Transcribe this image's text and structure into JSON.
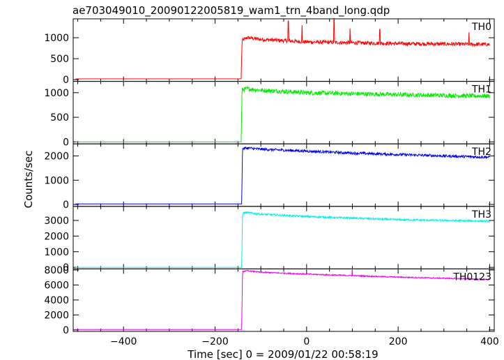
{
  "chart_data": {
    "type": "line",
    "title": "ae703049010_20090122005819_wam1_trn_4band_long.qdp",
    "xlabel": "Time [sec] 0 = 2009/01/22 00:58:19",
    "ylabel": "Counts/sec",
    "xlim": [
      -510,
      410
    ],
    "xticks": [
      -400,
      -200,
      0,
      200,
      400
    ],
    "xtick_labels": [
      "−400",
      "−200",
      "0",
      "200",
      "400"
    ],
    "grid": false,
    "panels": [
      {
        "name": "TH0",
        "color": "#ff0000",
        "ylim": [
          -40,
          1450
        ],
        "yticks": [
          0,
          500,
          1000
        ],
        "pre_level": 20,
        "step_x": -142,
        "post_peak": 1000,
        "post_end": 840,
        "noise": 45,
        "spikes": [
          [
            -40,
            1400
          ],
          [
            -10,
            1300
          ],
          [
            60,
            1460
          ],
          [
            95,
            1220
          ],
          [
            160,
            1200
          ],
          [
            355,
            1130
          ]
        ],
        "series": [
          {
            "name": "TH0",
            "x": [
              -505,
              -143,
              -141,
              -130,
              -100,
              0,
              100,
              200,
              300,
              400
            ],
            "y": [
              20,
              20,
              930,
              1000,
              960,
              900,
              880,
              860,
              850,
              840
            ]
          }
        ]
      },
      {
        "name": "TH1",
        "color": "#00ee00",
        "ylim": [
          -40,
          1230
        ],
        "yticks": [
          0,
          500,
          1000
        ],
        "pre_level": 0,
        "step_x": -142,
        "post_peak": 1080,
        "post_end": 930,
        "noise": 45,
        "spikes": [],
        "series": [
          {
            "name": "TH1",
            "x": [
              -505,
              -143,
              -141,
              -130,
              -100,
              0,
              100,
              200,
              300,
              400
            ],
            "y": [
              0,
              0,
              1060,
              1080,
              1050,
              1000,
              980,
              960,
              945,
              930
            ]
          }
        ]
      },
      {
        "name": "TH2",
        "color": "#0000ee",
        "ylim": [
          -80,
          2500
        ],
        "yticks": [
          0,
          1000,
          2000
        ],
        "pre_level": 20,
        "step_x": -141,
        "post_peak": 2330,
        "post_end": 1950,
        "noise": 55,
        "spikes": [],
        "series": [
          {
            "name": "TH2",
            "x": [
              -505,
              -142,
              -140,
              -130,
              -100,
              0,
              100,
              200,
              300,
              400
            ],
            "y": [
              20,
              20,
              2300,
              2330,
              2280,
              2200,
              2120,
              2060,
              2000,
              1950
            ]
          }
        ]
      },
      {
        "name": "TH3",
        "color": "#00eeee",
        "ylim": [
          -100,
          3900
        ],
        "yticks": [
          0,
          1000,
          2000,
          3000
        ],
        "pre_level": 0,
        "step_x": -141,
        "post_peak": 3500,
        "post_end": 2950,
        "noise": 60,
        "spikes": [],
        "series": [
          {
            "name": "TH3",
            "x": [
              -505,
              -142,
              -140,
              -130,
              -100,
              0,
              100,
              200,
              300,
              400
            ],
            "y": [
              0,
              0,
              3450,
              3500,
              3400,
              3250,
              3150,
              3050,
              3000,
              2950
            ]
          }
        ]
      },
      {
        "name": "TH0123",
        "color": "#ee00ee",
        "ylim": [
          -200,
          8150
        ],
        "yticks": [
          0,
          2000,
          4000,
          6000,
          8000
        ],
        "pre_level": 50,
        "step_x": -141,
        "post_peak": 7900,
        "post_end": 6750,
        "noise": 80,
        "spikes": [
          [
            100,
            8100
          ]
        ],
        "series": [
          {
            "name": "TH0123",
            "x": [
              -505,
              -142,
              -140,
              -130,
              -100,
              0,
              100,
              200,
              300,
              400
            ],
            "y": [
              50,
              50,
              7800,
              7900,
              7700,
              7450,
              7250,
              7050,
              6900,
              6750
            ]
          }
        ]
      }
    ]
  }
}
